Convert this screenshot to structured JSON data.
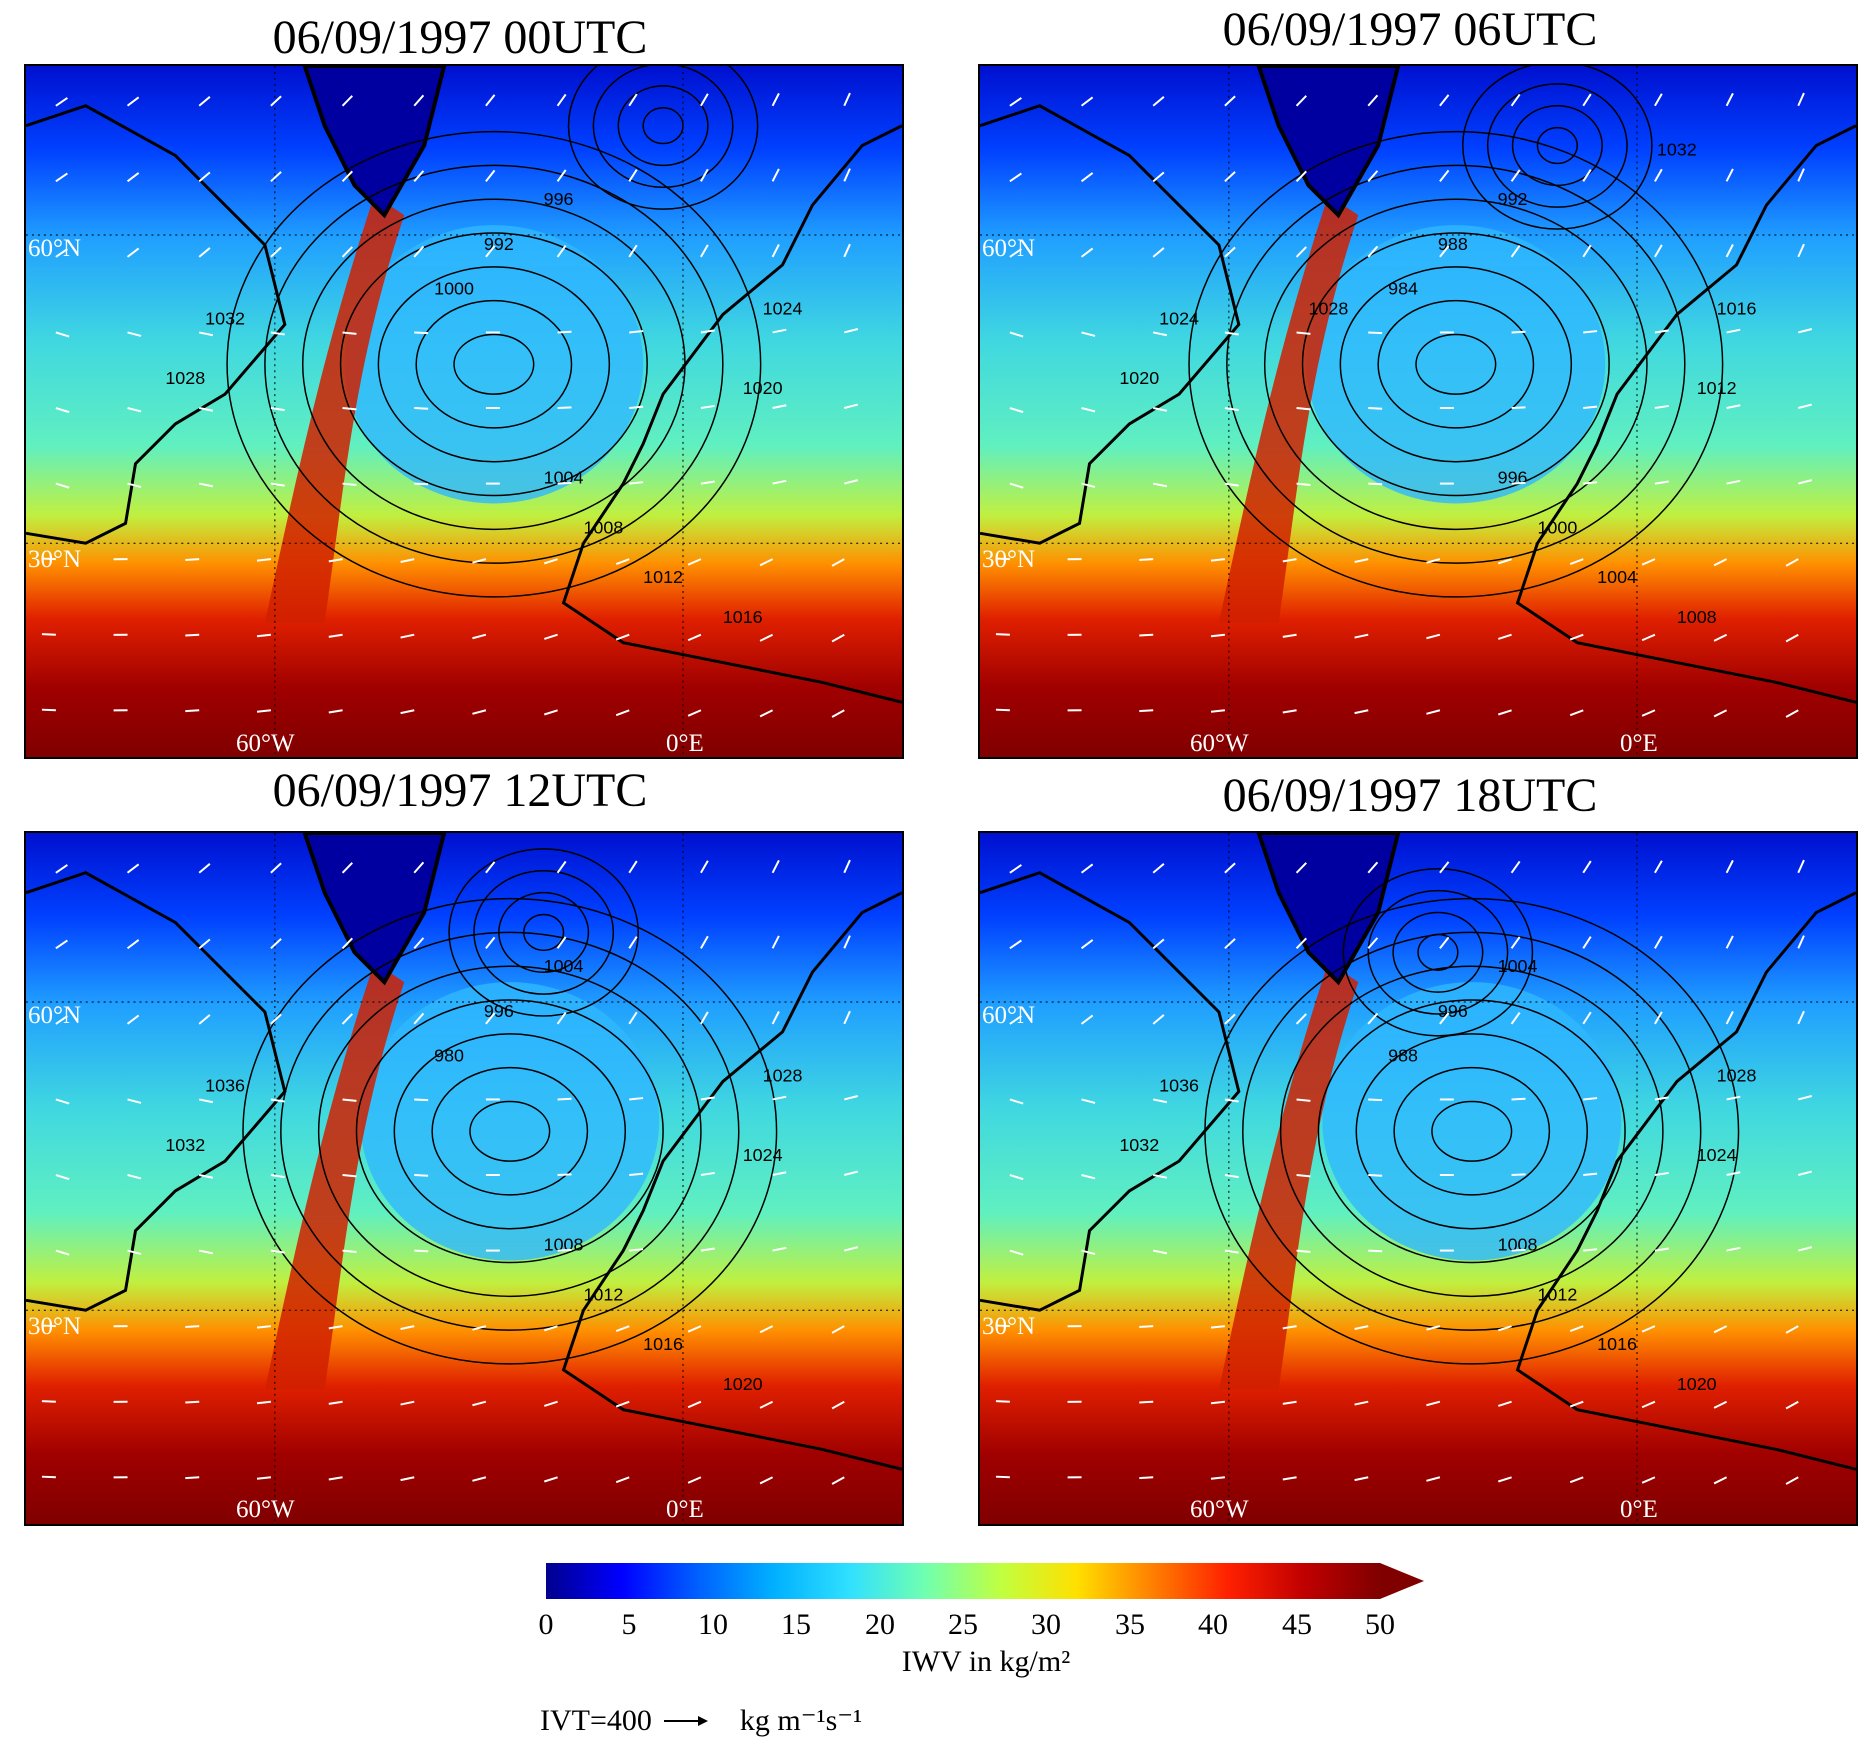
{
  "panels": [
    {
      "title": "06/09/1997 00UTC",
      "labels": {
        "lat60": "60°N",
        "lat30": "30°N",
        "lon60w": "60°W",
        "lon0": "0°E"
      },
      "contours": [
        "1000",
        "992",
        "996",
        "1004",
        "1008",
        "1012",
        "1016",
        "1020",
        "1024",
        "1028",
        "1032"
      ]
    },
    {
      "title": "06/09/1997 06UTC",
      "labels": {
        "lat60": "60°N",
        "lat30": "30°N",
        "lon60w": "60°W",
        "lon0": "0°E"
      },
      "contours": [
        "984",
        "988",
        "992",
        "996",
        "1000",
        "1004",
        "1008",
        "1012",
        "1016",
        "1020",
        "1024",
        "1028",
        "1032"
      ]
    },
    {
      "title": "06/09/1997 12UTC",
      "labels": {
        "lat60": "60°N",
        "lat30": "30°N",
        "lon60w": "60°W",
        "lon0": "0°E"
      },
      "contours": [
        "980",
        "996",
        "1004",
        "1008",
        "1012",
        "1016",
        "1020",
        "1024",
        "1028",
        "1032",
        "1036"
      ]
    },
    {
      "title": "06/09/1997 18UTC",
      "labels": {
        "lat60": "60°N",
        "lat30": "30°N",
        "lon60w": "60°W",
        "lon0": "0°E"
      },
      "contours": [
        "988",
        "996",
        "1004",
        "1008",
        "1012",
        "1016",
        "1020",
        "1024",
        "1028",
        "1032",
        "1036"
      ]
    }
  ],
  "colorbar": {
    "ticks": [
      "0",
      "5",
      "10",
      "15",
      "20",
      "25",
      "30",
      "35",
      "40",
      "45",
      "50"
    ],
    "label": "IWV in kg/m²",
    "colors": [
      "#00008f",
      "#0000ff",
      "#0060ff",
      "#00b0ff",
      "#30e0ff",
      "#70ffb0",
      "#c0ff40",
      "#ffe000",
      "#ff8000",
      "#ff2000",
      "#c00000",
      "#800000"
    ]
  },
  "ivt_legend": {
    "value_label": "IVT=400",
    "units": "kg m⁻¹s⁻¹"
  }
}
